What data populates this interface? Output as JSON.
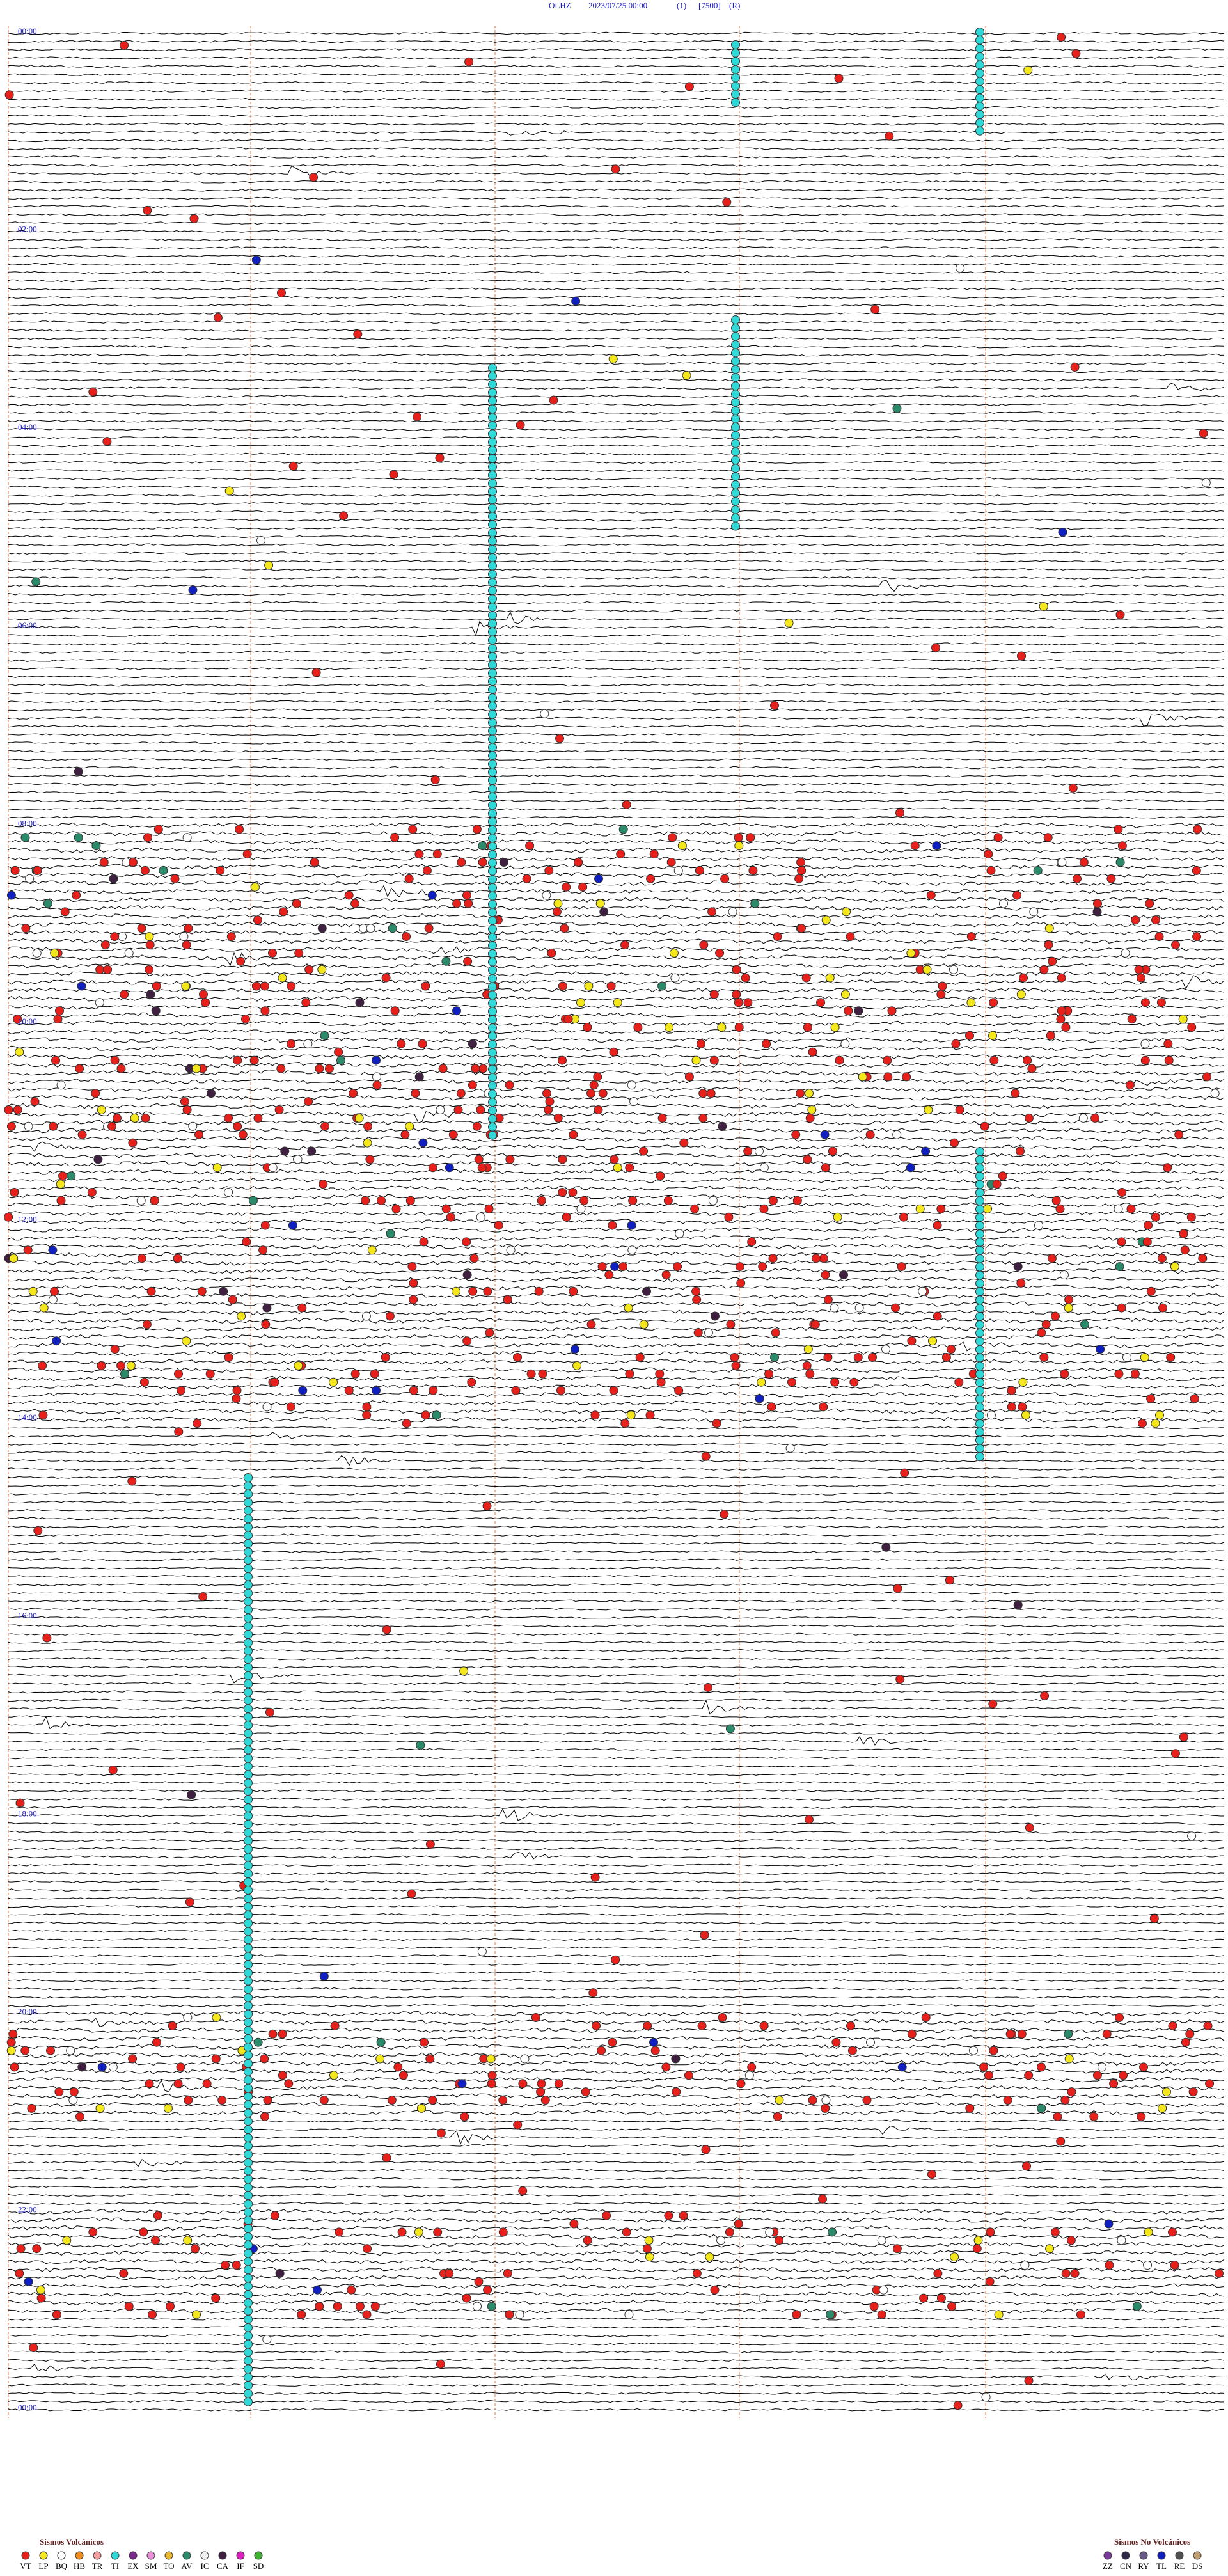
{
  "header": {
    "station": "OLHZ",
    "datetime": "2023/07/25 00:00",
    "channel": "(1)",
    "scale": "[7500]",
    "mode": "(R)"
  },
  "hour_labels": [
    "00:00",
    "02:00",
    "04:00",
    "06:00",
    "08:00",
    "10:00",
    "12:00",
    "14:00",
    "16:00",
    "18:00",
    "20:00",
    "22:00",
    "00:00"
  ],
  "legend": {
    "volcanic": {
      "title": "Sismos Volcánicos",
      "items": [
        {
          "code": "VT",
          "color": "#e8201c"
        },
        {
          "code": "LP",
          "color": "#f4e81c"
        },
        {
          "code": "BQ",
          "color": "#ffffff"
        },
        {
          "code": "HB",
          "color": "#f08c1c"
        },
        {
          "code": "TR",
          "color": "#f4a0a0"
        },
        {
          "code": "TI",
          "color": "#30d8d8"
        },
        {
          "code": "EX",
          "color": "#7a2a8a"
        },
        {
          "code": "SM",
          "color": "#e890d8"
        },
        {
          "code": "TO",
          "color": "#e8b830"
        },
        {
          "code": "AV",
          "color": "#2a8a6a"
        },
        {
          "code": "IC",
          "color": "#f0f0f0"
        },
        {
          "code": "CA",
          "color": "#402040"
        },
        {
          "code": "IF",
          "color": "#e020c0"
        },
        {
          "code": "SD",
          "color": "#40b030"
        }
      ]
    },
    "non_volcanic": {
      "title": "Sismos No Volcánicos",
      "items": [
        {
          "code": "ZZ",
          "color": "#7a3a9a"
        },
        {
          "code": "CN",
          "color": "#302848"
        },
        {
          "code": "RY",
          "color": "#6a5a8a"
        },
        {
          "code": "TL",
          "color": "#1020c0"
        },
        {
          "code": "RE",
          "color": "#505050"
        },
        {
          "code": "DS",
          "color": "#c0a070"
        }
      ]
    }
  }
}
